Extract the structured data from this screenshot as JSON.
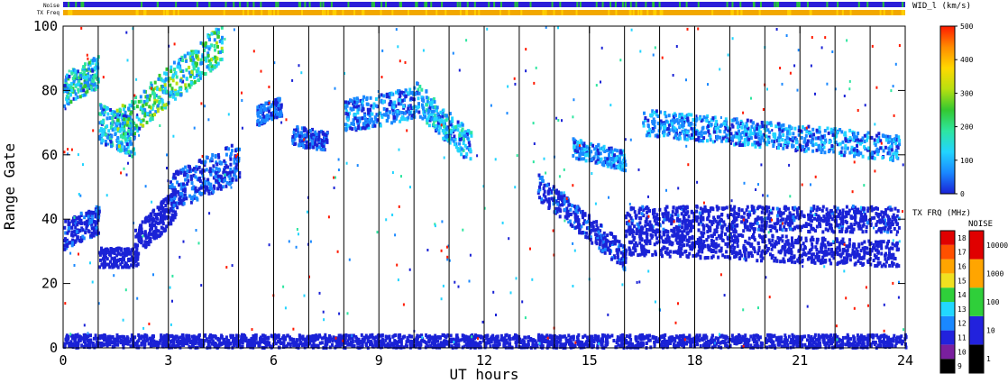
{
  "chart_data": {
    "type": "heatmap",
    "xlabel": "UT hours",
    "ylabel": "Range Gate",
    "xlim": [
      0,
      24
    ],
    "ylim": [
      0,
      100
    ],
    "xticks": [
      0,
      3,
      6,
      9,
      12,
      15,
      18,
      21,
      24
    ],
    "yticks": [
      0,
      20,
      40,
      60,
      80,
      100
    ],
    "vertical_markers_ut": [
      1,
      2,
      3,
      4,
      5,
      6,
      7,
      8,
      9,
      10,
      11,
      12,
      13,
      14,
      15,
      16,
      17,
      18,
      19,
      20,
      21,
      22,
      23
    ],
    "top_bars": [
      {
        "name": "Noise",
        "dominant_color": "#2b1ed8",
        "accent_color": "#27c23a"
      },
      {
        "name": "TX Freq",
        "dominant_color": "#f2a800",
        "accent_color": "#ffd000"
      }
    ],
    "colorbars": [
      {
        "title": "WID_l (km/s)",
        "min": 0,
        "max": 500,
        "ticks": [
          0,
          100,
          200,
          300,
          400,
          500
        ],
        "stops": [
          "#1a22d6",
          "#1a88ff",
          "#22d4ff",
          "#2ee6a0",
          "#34c830",
          "#b8e010",
          "#ffd800",
          "#ff8c00",
          "#ff1a00"
        ]
      },
      {
        "title": "TX FRQ (MHz)",
        "ticks": [
          "9",
          "10",
          "11",
          "12",
          "13",
          "14",
          "15",
          "16",
          "17",
          "18"
        ],
        "colors": [
          "#000000",
          "#7a1f9e",
          "#2222dd",
          "#1a88ff",
          "#22d8ff",
          "#2fcf3a",
          "#f0e020",
          "#ffa500",
          "#ff5000",
          "#e00000"
        ]
      },
      {
        "title": "NOISE",
        "ticks": [
          "1",
          "10",
          "100",
          "1000",
          "10000"
        ],
        "colors": [
          "#000000",
          "#2222dd",
          "#2fcf3a",
          "#ffa500",
          "#e00000"
        ]
      }
    ],
    "scatter_bands": [
      {
        "ut_start": 0.0,
        "ut_end": 1.0,
        "gate_start": 35,
        "gate_end": 40,
        "width": 9,
        "value": 40
      },
      {
        "ut_start": 0.0,
        "ut_end": 1.0,
        "gate_start": 80,
        "gate_end": 86,
        "width": 10,
        "value": 150
      },
      {
        "ut_start": 1.0,
        "ut_end": 2.1,
        "gate_start": 28,
        "gate_end": 28,
        "width": 6,
        "value": 20
      },
      {
        "ut_start": 1.0,
        "ut_end": 2.0,
        "gate_start": 70,
        "gate_end": 65,
        "width": 12,
        "value": 120
      },
      {
        "ut_start": 2.0,
        "ut_end": 3.2,
        "gate_start": 32,
        "gate_end": 45,
        "width": 10,
        "value": 30
      },
      {
        "ut_start": 3.0,
        "ut_end": 5.0,
        "gate_start": 48,
        "gate_end": 58,
        "width": 12,
        "value": 50
      },
      {
        "ut_start": 1.5,
        "ut_end": 4.5,
        "gate_start": 68,
        "gate_end": 95,
        "width": 12,
        "value": 180
      },
      {
        "ut_start": 5.5,
        "ut_end": 6.2,
        "gate_start": 72,
        "gate_end": 75,
        "width": 6,
        "value": 60
      },
      {
        "ut_start": 6.5,
        "ut_end": 7.5,
        "gate_start": 66,
        "gate_end": 64,
        "width": 6,
        "value": 50
      },
      {
        "ut_start": 8.0,
        "ut_end": 10.0,
        "gate_start": 72,
        "gate_end": 76,
        "width": 10,
        "value": 80
      },
      {
        "ut_start": 10.0,
        "ut_end": 11.6,
        "gate_start": 78,
        "gate_end": 62,
        "width": 10,
        "value": 110
      },
      {
        "ut_start": 13.5,
        "ut_end": 16.0,
        "gate_start": 50,
        "gate_end": 28,
        "width": 8,
        "value": 40
      },
      {
        "ut_start": 14.5,
        "ut_end": 16.0,
        "gate_start": 62,
        "gate_end": 58,
        "width": 6,
        "value": 90
      },
      {
        "ut_start": 16.0,
        "ut_end": 23.8,
        "gate_start": 40,
        "gate_end": 40,
        "width": 8,
        "value": 35
      },
      {
        "ut_start": 16.0,
        "ut_end": 23.8,
        "gate_start": 33,
        "gate_end": 29,
        "width": 8,
        "value": 30
      },
      {
        "ut_start": 16.5,
        "ut_end": 23.8,
        "gate_start": 70,
        "gate_end": 62,
        "width": 8,
        "value": 90
      },
      {
        "ut_start": 0.0,
        "ut_end": 24.0,
        "gate_start": 2,
        "gate_end": 2,
        "width": 4,
        "value": 20
      }
    ]
  }
}
